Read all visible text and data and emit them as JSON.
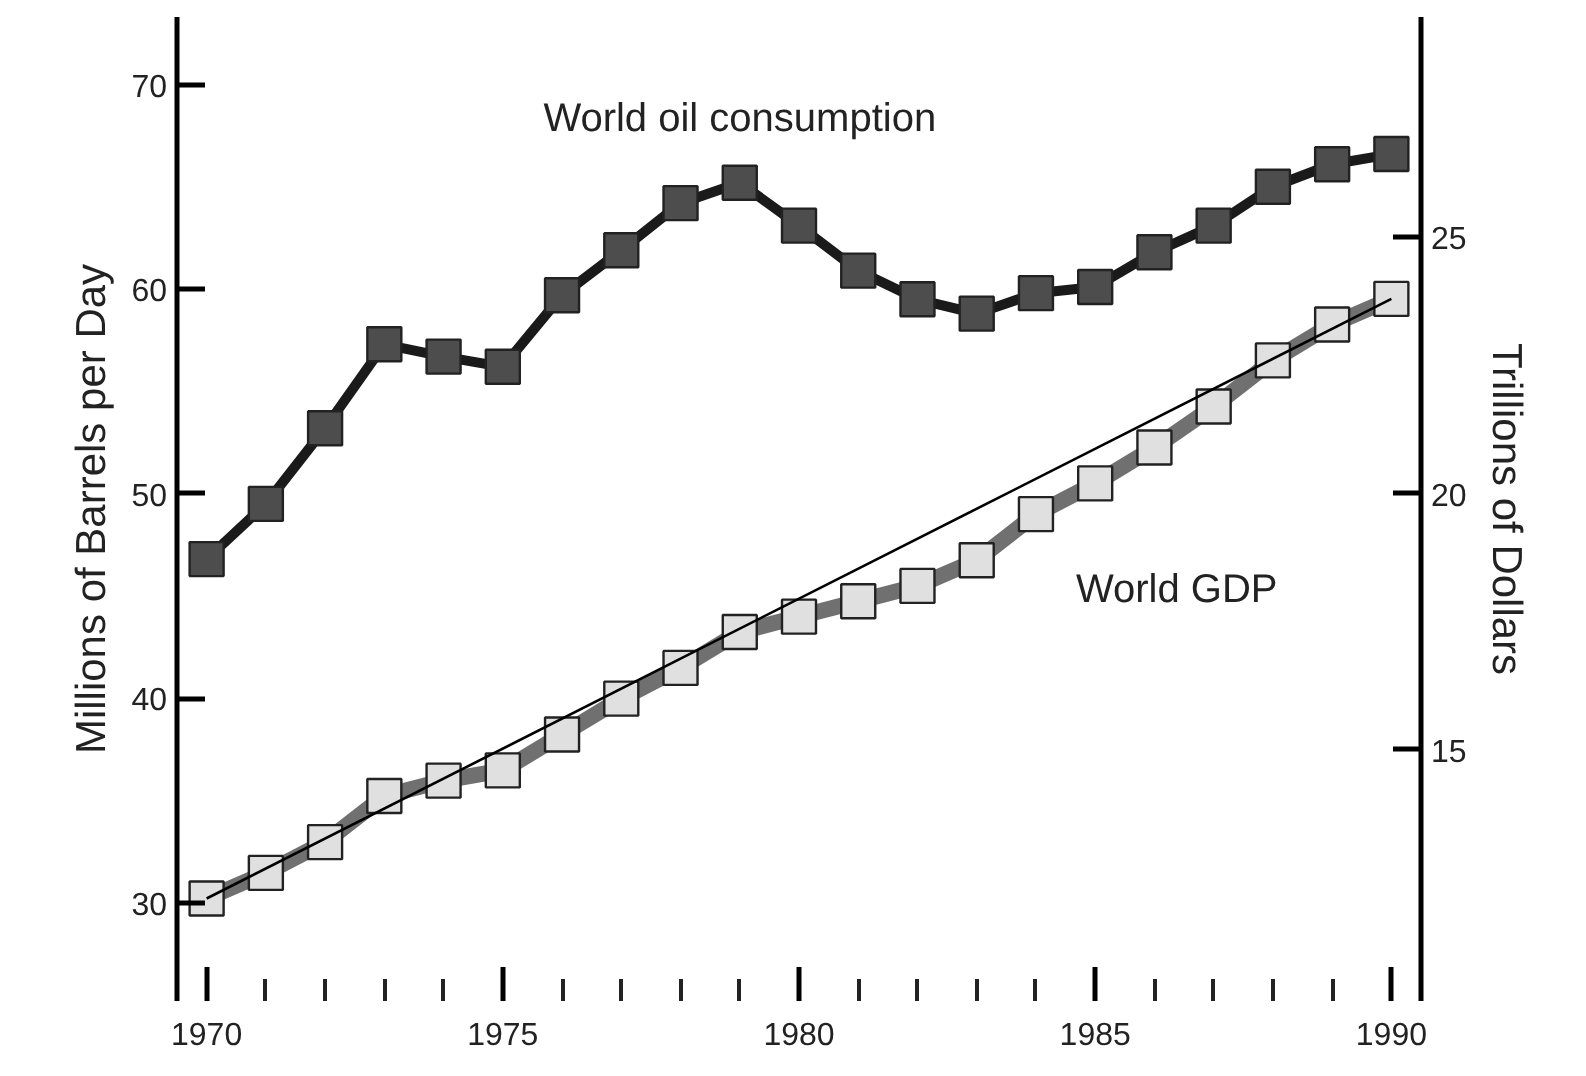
{
  "chart_data": {
    "type": "line",
    "ylabel": "Millions of Barrels per Day",
    "y2label": "Trillions of Dollars",
    "x": [
      1970,
      1971,
      1972,
      1973,
      1974,
      1975,
      1976,
      1977,
      1978,
      1979,
      1980,
      1981,
      1982,
      1983,
      1984,
      1985,
      1986,
      1987,
      1988,
      1989,
      1990
    ],
    "xlim": [
      1969.5,
      1990.5
    ],
    "xticks": [
      1970,
      {
        "value": 1971,
        "label": null
      },
      {
        "value": 1972,
        "label": null
      },
      {
        "value": 1973,
        "label": null
      },
      {
        "value": 1974,
        "label": null
      },
      1975,
      {
        "value": 1976,
        "label": null
      },
      {
        "value": 1977,
        "label": null
      },
      {
        "value": 1978,
        "label": null
      },
      {
        "value": 1979,
        "label": null
      },
      1980,
      {
        "value": 1981,
        "label": null
      },
      {
        "value": 1982,
        "label": null
      },
      {
        "value": 1983,
        "label": null
      },
      {
        "value": 1984,
        "label": null
      },
      1985,
      {
        "value": 1986,
        "label": null
      },
      {
        "value": 1987,
        "label": null
      },
      {
        "value": 1988,
        "label": null
      },
      {
        "value": 1989,
        "label": null
      },
      1990
    ],
    "ylim": [
      25.2,
      73.3
    ],
    "yticks": [
      30,
      40,
      50,
      60,
      70
    ],
    "y2lim": [
      10.1,
      29.3
    ],
    "y2ticks": [
      15,
      20,
      25
    ],
    "grid": false,
    "series": [
      {
        "name": "World oil consumption",
        "color": "#1a1a1a",
        "marker": "square",
        "values": [
          46.8,
          49.5,
          53.2,
          57.3,
          56.7,
          56.2,
          59.7,
          61.9,
          64.2,
          65.2,
          63.1,
          60.9,
          59.5,
          58.8,
          59.8,
          60.1,
          61.8,
          63.1,
          65.0,
          66.1,
          66.6
        ]
      },
      {
        "name": "World GDP",
        "color": "#707070",
        "marker": "square",
        "axis": "y2",
        "values": [
          12.1,
          12.6,
          13.2,
          14.1,
          14.4,
          14.6,
          15.3,
          16.0,
          16.6,
          17.3,
          17.6,
          17.9,
          18.2,
          18.7,
          19.6,
          20.2,
          20.9,
          21.7,
          22.6,
          23.3,
          23.8
        ]
      },
      {
        "type": "line",
        "color": "#000000",
        "axis": "y2",
        "x": [
          1970,
          1990
        ],
        "values": [
          12.1,
          23.8
        ]
      }
    ]
  }
}
